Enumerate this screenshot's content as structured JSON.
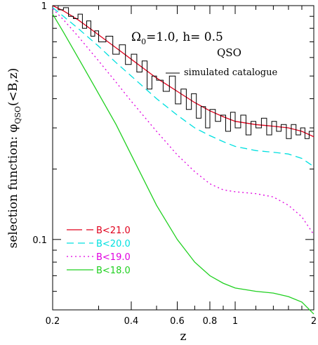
{
  "chart_data": {
    "type": "line",
    "title": "",
    "xlabel": "z",
    "ylabel": "selection function: φ",
    "ylabel_sub": "QSO",
    "ylabel_tail": "(<B,z)",
    "xscale": "log",
    "yscale": "log",
    "xlim": [
      0.2,
      2.0
    ],
    "ylim": [
      0.05,
      1.0
    ],
    "x_ticks": [
      0.2,
      0.4,
      0.6,
      0.8,
      1,
      2
    ],
    "x_tick_labels": [
      "0.2",
      "0.4",
      "0.6",
      "0.8",
      "1",
      "2"
    ],
    "y_ticks": [
      0.1,
      1
    ],
    "y_tick_labels": [
      "0.1",
      "1"
    ],
    "annotations": {
      "cosmology_omega": "Ω",
      "cosmology_sub": "0",
      "cosmology_rest": "=1.0,  h=  0.5",
      "object": "QSO",
      "histogram_label": "simulated catalogue"
    },
    "legend_position": "bottom-left",
    "series": [
      {
        "name": "B<21.0",
        "color": "#e0001c",
        "dash": "solid",
        "x": [
          0.2,
          0.22,
          0.25,
          0.3,
          0.35,
          0.4,
          0.5,
          0.6,
          0.7,
          0.8,
          0.9,
          1.0,
          1.2,
          1.4,
          1.6,
          1.8,
          2.0
        ],
        "y": [
          1.0,
          0.95,
          0.87,
          0.75,
          0.66,
          0.59,
          0.49,
          0.43,
          0.385,
          0.355,
          0.335,
          0.32,
          0.31,
          0.305,
          0.3,
          0.29,
          0.275
        ]
      },
      {
        "name": "B<20.0",
        "color": "#00e0e0",
        "dash": "dashed",
        "x": [
          0.2,
          0.22,
          0.25,
          0.3,
          0.35,
          0.4,
          0.5,
          0.6,
          0.7,
          0.8,
          0.9,
          1.0,
          1.2,
          1.4,
          1.6,
          1.8,
          2.0
        ],
        "y": [
          0.98,
          0.9,
          0.8,
          0.67,
          0.57,
          0.5,
          0.4,
          0.34,
          0.3,
          0.278,
          0.262,
          0.25,
          0.24,
          0.236,
          0.232,
          0.222,
          0.205
        ]
      },
      {
        "name": "B<19.0",
        "color": "#e000e0",
        "dash": "dotted",
        "x": [
          0.2,
          0.22,
          0.25,
          0.3,
          0.35,
          0.4,
          0.5,
          0.6,
          0.7,
          0.8,
          0.9,
          1.0,
          1.2,
          1.4,
          1.6,
          1.8,
          2.0
        ],
        "y": [
          0.97,
          0.87,
          0.74,
          0.58,
          0.47,
          0.39,
          0.29,
          0.23,
          0.195,
          0.173,
          0.163,
          0.16,
          0.157,
          0.152,
          0.14,
          0.125,
          0.105
        ]
      },
      {
        "name": "B<18.0",
        "color": "#20d020",
        "dash": "solid",
        "x": [
          0.2,
          0.22,
          0.25,
          0.3,
          0.35,
          0.4,
          0.5,
          0.6,
          0.7,
          0.8,
          0.9,
          1.0,
          1.2,
          1.4,
          1.6,
          1.8,
          2.0
        ],
        "y": [
          0.92,
          0.77,
          0.6,
          0.42,
          0.31,
          0.23,
          0.14,
          0.1,
          0.08,
          0.07,
          0.065,
          0.062,
          0.06,
          0.059,
          0.057,
          0.054,
          0.048
        ]
      },
      {
        "name": "simulated catalogue",
        "color": "#000000",
        "dash": "step",
        "x": [
          0.2,
          0.21,
          0.22,
          0.23,
          0.24,
          0.25,
          0.26,
          0.27,
          0.28,
          0.29,
          0.3,
          0.32,
          0.34,
          0.36,
          0.38,
          0.4,
          0.42,
          0.44,
          0.46,
          0.48,
          0.5,
          0.53,
          0.56,
          0.59,
          0.62,
          0.65,
          0.68,
          0.71,
          0.74,
          0.77,
          0.8,
          0.84,
          0.88,
          0.92,
          0.96,
          1.0,
          1.05,
          1.1,
          1.15,
          1.2,
          1.26,
          1.32,
          1.38,
          1.44,
          1.5,
          1.57,
          1.64,
          1.71,
          1.78,
          1.85,
          1.92,
          2.0
        ],
        "y": [
          1.0,
          0.96,
          0.98,
          0.9,
          0.88,
          0.92,
          0.8,
          0.86,
          0.74,
          0.78,
          0.7,
          0.74,
          0.62,
          0.68,
          0.56,
          0.62,
          0.52,
          0.58,
          0.44,
          0.5,
          0.48,
          0.43,
          0.5,
          0.38,
          0.44,
          0.36,
          0.42,
          0.33,
          0.37,
          0.3,
          0.36,
          0.32,
          0.34,
          0.29,
          0.35,
          0.3,
          0.34,
          0.28,
          0.32,
          0.3,
          0.33,
          0.28,
          0.32,
          0.29,
          0.31,
          0.27,
          0.31,
          0.28,
          0.3,
          0.27,
          0.29,
          0.27
        ]
      }
    ]
  }
}
